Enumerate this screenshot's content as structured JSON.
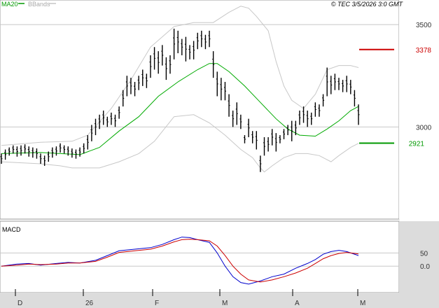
{
  "header": {
    "legend_ma": "MA20",
    "legend_bb": "BBands",
    "copyright": "© TEC 3/5/2026 3:0 GMT"
  },
  "colors": {
    "price": "#000000",
    "ma": "#00aa00",
    "bands": "#c8c8c8",
    "macd": "#0000cc",
    "signal": "#cc0000",
    "resistance": "#cc0000",
    "support": "#009900",
    "grid": "#c8c8c8",
    "axis_panel": "#dcdcdc"
  },
  "chart_data": [
    {
      "type": "line",
      "subtype": "ohlc",
      "xticks": [
        "D",
        "26",
        "F",
        "M",
        "A",
        "M"
      ],
      "yticks": [
        "3500",
        "3000"
      ],
      "ylim": [
        2550,
        3620
      ],
      "x_start": 0,
      "x_end": 100,
      "price_bars": [
        [
          0,
          2870,
          2820
        ],
        [
          1,
          2890,
          2840
        ],
        [
          2,
          2900,
          2860
        ],
        [
          3,
          2910,
          2870
        ],
        [
          4,
          2905,
          2855
        ],
        [
          5,
          2910,
          2860
        ],
        [
          6,
          2915,
          2870
        ],
        [
          7,
          2905,
          2855
        ],
        [
          8,
          2900,
          2850
        ],
        [
          9,
          2895,
          2845
        ],
        [
          10,
          2870,
          2820
        ],
        [
          11,
          2860,
          2810
        ],
        [
          12,
          2880,
          2830
        ],
        [
          13,
          2900,
          2850
        ],
        [
          14,
          2905,
          2860
        ],
        [
          15,
          2920,
          2875
        ],
        [
          16,
          2910,
          2870
        ],
        [
          17,
          2905,
          2860
        ],
        [
          18,
          2895,
          2850
        ],
        [
          19,
          2890,
          2845
        ],
        [
          20,
          2900,
          2855
        ],
        [
          21,
          2920,
          2870
        ],
        [
          22,
          2960,
          2890
        ],
        [
          23,
          3010,
          2930
        ],
        [
          24,
          3040,
          2960
        ],
        [
          25,
          3060,
          2990
        ],
        [
          26,
          3080,
          3010
        ],
        [
          27,
          3050,
          3000
        ],
        [
          28,
          3070,
          3010
        ],
        [
          29,
          3060,
          3000
        ],
        [
          30,
          3100,
          3040
        ],
        [
          31,
          3180,
          3100
        ],
        [
          32,
          3250,
          3150
        ],
        [
          33,
          3240,
          3160
        ],
        [
          34,
          3220,
          3150
        ],
        [
          35,
          3250,
          3180
        ],
        [
          36,
          3280,
          3200
        ],
        [
          37,
          3260,
          3190
        ],
        [
          38,
          3350,
          3240
        ],
        [
          39,
          3390,
          3280
        ],
        [
          40,
          3370,
          3260
        ],
        [
          41,
          3400,
          3300
        ],
        [
          42,
          3340,
          3230
        ],
        [
          43,
          3350,
          3260
        ],
        [
          44,
          3480,
          3330
        ],
        [
          45,
          3470,
          3360
        ],
        [
          46,
          3430,
          3350
        ],
        [
          47,
          3440,
          3320
        ],
        [
          48,
          3400,
          3330
        ],
        [
          49,
          3420,
          3330
        ],
        [
          50,
          3460,
          3380
        ],
        [
          51,
          3470,
          3390
        ],
        [
          52,
          3450,
          3380
        ],
        [
          53,
          3470,
          3390
        ],
        [
          54,
          3370,
          3240
        ],
        [
          55,
          3270,
          3150
        ],
        [
          56,
          3240,
          3130
        ],
        [
          57,
          3220,
          3130
        ],
        [
          58,
          3160,
          3050
        ],
        [
          59,
          3080,
          3000
        ],
        [
          60,
          3120,
          3010
        ],
        [
          61,
          3060,
          2990
        ],
        [
          62,
          2960,
          2920
        ],
        [
          63,
          3040,
          2950
        ],
        [
          64,
          2980,
          2920
        ],
        [
          65,
          2980,
          2890
        ],
        [
          66,
          2860,
          2780
        ],
        [
          67,
          2950,
          2860
        ],
        [
          68,
          2950,
          2880
        ],
        [
          69,
          2990,
          2910
        ],
        [
          70,
          2970,
          2880
        ],
        [
          71,
          2960,
          2920
        ],
        [
          72,
          2990,
          2940
        ],
        [
          73,
          3010,
          2960
        ],
        [
          74,
          3030,
          2930
        ],
        [
          75,
          3030,
          2960
        ],
        [
          76,
          3080,
          3010
        ],
        [
          77,
          3100,
          3020
        ],
        [
          78,
          3080,
          3000
        ],
        [
          79,
          3070,
          3010
        ],
        [
          80,
          3120,
          3050
        ],
        [
          81,
          3110,
          3050
        ],
        [
          82,
          3160,
          3100
        ],
        [
          83,
          3290,
          3150
        ],
        [
          84,
          3250,
          3160
        ],
        [
          85,
          3260,
          3180
        ],
        [
          86,
          3240,
          3180
        ],
        [
          87,
          3230,
          3170
        ],
        [
          88,
          3250,
          3170
        ],
        [
          89,
          3230,
          3160
        ],
        [
          90,
          3180,
          3100
        ],
        [
          91,
          3110,
          3010
        ]
      ],
      "ma20": [
        [
          0,
          2870
        ],
        [
          10,
          2875
        ],
        [
          20,
          2865
        ],
        [
          25,
          2900
        ],
        [
          30,
          2980
        ],
        [
          35,
          3050
        ],
        [
          40,
          3150
        ],
        [
          45,
          3220
        ],
        [
          50,
          3280
        ],
        [
          53,
          3310
        ],
        [
          55,
          3310
        ],
        [
          58,
          3270
        ],
        [
          62,
          3200
        ],
        [
          66,
          3120
        ],
        [
          70,
          3040
        ],
        [
          73,
          2990
        ],
        [
          76,
          2960
        ],
        [
          80,
          2955
        ],
        [
          83,
          2990
        ],
        [
          86,
          3030
        ],
        [
          89,
          3080
        ],
        [
          91,
          3100
        ]
      ],
      "bb_upper": [
        [
          0,
          2910
        ],
        [
          10,
          2925
        ],
        [
          18,
          2930
        ],
        [
          22,
          2960
        ],
        [
          28,
          3090
        ],
        [
          33,
          3230
        ],
        [
          38,
          3390
        ],
        [
          44,
          3490
        ],
        [
          49,
          3510
        ],
        [
          54,
          3510
        ],
        [
          58,
          3560
        ],
        [
          61,
          3590
        ],
        [
          63,
          3580
        ],
        [
          65,
          3540
        ],
        [
          68,
          3470
        ],
        [
          70,
          3320
        ],
        [
          72,
          3200
        ],
        [
          74,
          3130
        ],
        [
          77,
          3090
        ],
        [
          80,
          3160
        ],
        [
          83,
          3280
        ],
        [
          86,
          3300
        ],
        [
          89,
          3300
        ],
        [
          91,
          3290
        ]
      ],
      "bb_lower": [
        [
          0,
          2830
        ],
        [
          10,
          2820
        ],
        [
          15,
          2810
        ],
        [
          18,
          2800
        ],
        [
          22,
          2800
        ],
        [
          25,
          2800
        ],
        [
          30,
          2830
        ],
        [
          35,
          2870
        ],
        [
          39,
          2930
        ],
        [
          44,
          3050
        ],
        [
          49,
          3060
        ],
        [
          53,
          3020
        ],
        [
          57,
          2960
        ],
        [
          61,
          2890
        ],
        [
          64,
          2850
        ],
        [
          66,
          2800
        ],
        [
          67,
          2780
        ],
        [
          69,
          2810
        ],
        [
          72,
          2850
        ],
        [
          75,
          2870
        ],
        [
          78,
          2870
        ],
        [
          81,
          2860
        ],
        [
          84,
          2830
        ],
        [
          86,
          2860
        ],
        [
          89,
          2900
        ],
        [
          91,
          2920
        ]
      ],
      "resistance": {
        "label": "3378",
        "value": 3378
      },
      "support": {
        "label": "2921",
        "value": 2921
      }
    },
    {
      "type": "line",
      "title": "MACD",
      "yticks": [
        "50",
        "0.0"
      ],
      "ylim": [
        -100,
        170
      ],
      "series": [
        {
          "color": "#0000cc",
          "x": [
            0,
            4,
            7,
            10,
            14,
            17,
            20,
            24,
            27,
            30,
            34,
            38,
            41,
            44,
            46,
            48,
            50,
            53,
            55,
            57,
            59,
            61,
            63,
            66,
            69,
            72,
            75,
            78,
            80,
            82,
            84,
            86,
            88,
            91
          ],
          "values": [
            0,
            8,
            10,
            4,
            10,
            14,
            12,
            22,
            40,
            58,
            64,
            70,
            82,
            100,
            110,
            108,
            100,
            90,
            50,
            0,
            -40,
            -62,
            -68,
            -56,
            -40,
            -30,
            -8,
            10,
            25,
            45,
            55,
            60,
            55,
            40
          ]
        },
        {
          "color": "#cc0000",
          "x": [
            0,
            4,
            7,
            10,
            14,
            17,
            20,
            24,
            27,
            30,
            34,
            38,
            41,
            44,
            46,
            48,
            50,
            53,
            55,
            57,
            59,
            61,
            63,
            66,
            69,
            72,
            75,
            78,
            80,
            82,
            84,
            86,
            88,
            91
          ],
          "values": [
            0,
            4,
            8,
            6,
            8,
            12,
            12,
            18,
            34,
            52,
            58,
            64,
            76,
            92,
            100,
            102,
            100,
            96,
            76,
            40,
            0,
            -30,
            -52,
            -60,
            -52,
            -40,
            -26,
            -8,
            10,
            28,
            40,
            48,
            52,
            46
          ]
        }
      ]
    }
  ]
}
